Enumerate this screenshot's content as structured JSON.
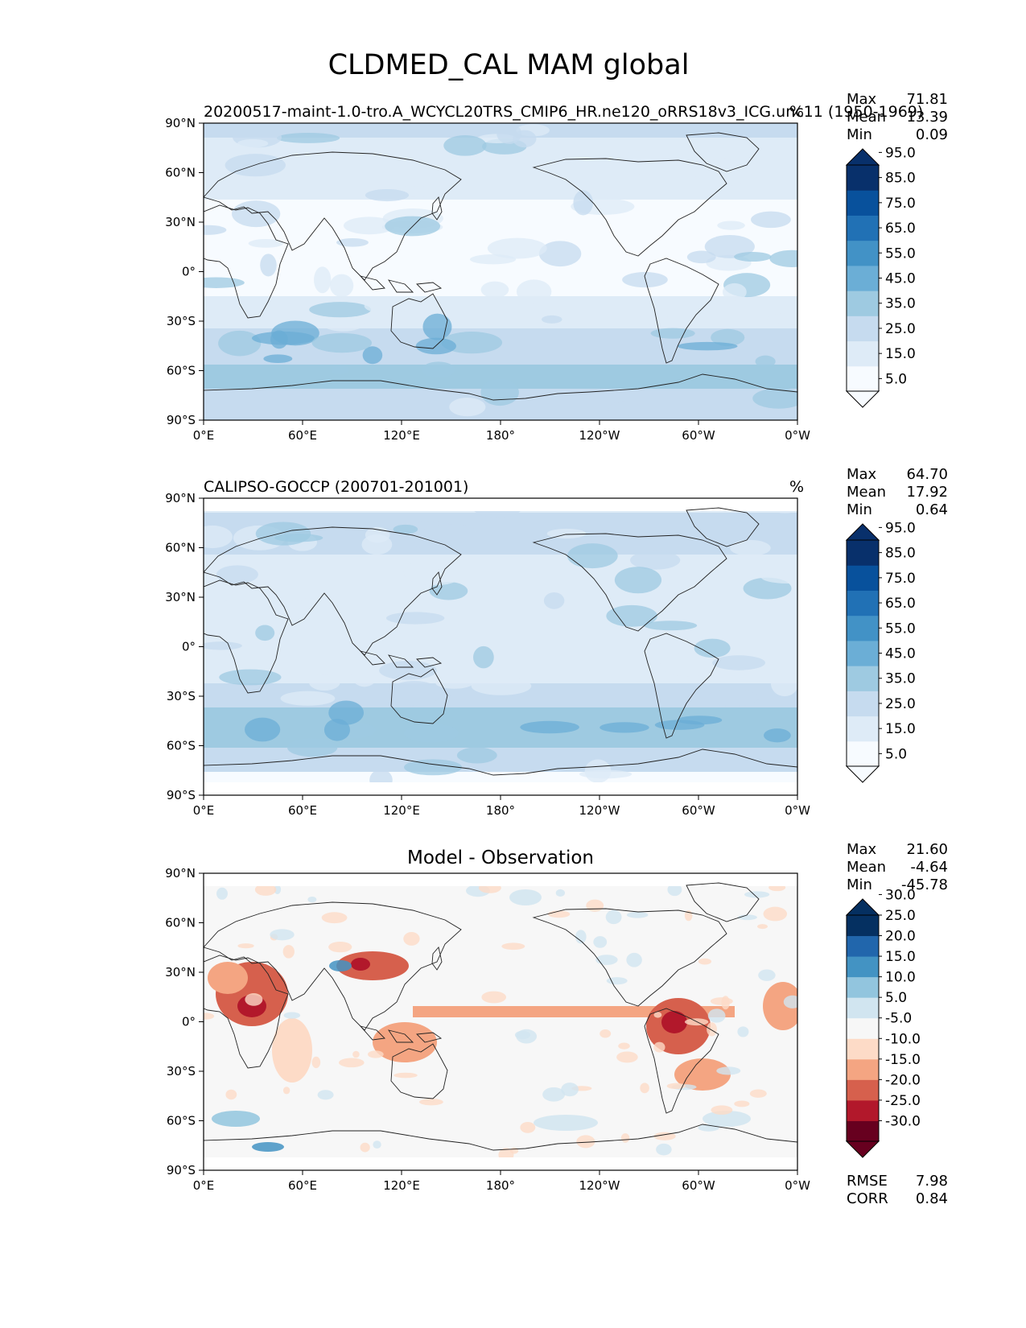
{
  "title": "CLDMED_CAL MAM global",
  "colors": {
    "seq": [
      "#f7fbff",
      "#deebf7",
      "#c6dbef",
      "#9ecae1",
      "#6baed6",
      "#4292c6",
      "#2171b5",
      "#08519c",
      "#08306b"
    ],
    "div": [
      "#67001f",
      "#b2182b",
      "#d6604d",
      "#f4a582",
      "#fddbc7",
      "#f7f7f7",
      "#d1e5f0",
      "#92c5de",
      "#4393c3",
      "#2166ac",
      "#053061"
    ]
  },
  "panels": [
    {
      "id": "model",
      "left_title": "20200517-maint-1.0-tro.A_WCYCL20TRS_CMIP6_HR.ne120_oRRS18v3_ICG.unc11 (1950-1969)",
      "center_title": "",
      "units": "%",
      "stats": [
        {
          "label": "Max",
          "value": "71.81"
        },
        {
          "label": "Mean",
          "value": "13.39"
        },
        {
          "label": "Min",
          "value": "0.09"
        }
      ],
      "colorbar_labels": [
        "5.0",
        "15.0",
        "25.0",
        "35.0",
        "45.0",
        "55.0",
        "65.0",
        "75.0",
        "85.0",
        "95.0"
      ],
      "colorbar_kind": "seq",
      "metrics": []
    },
    {
      "id": "obs",
      "left_title": "CALIPSO-GOCCP (200701-201001)",
      "center_title": "",
      "units": "%",
      "stats": [
        {
          "label": "Max",
          "value": "64.70"
        },
        {
          "label": "Mean",
          "value": "17.92"
        },
        {
          "label": "Min",
          "value": "0.64"
        }
      ],
      "colorbar_labels": [
        "5.0",
        "15.0",
        "25.0",
        "35.0",
        "45.0",
        "55.0",
        "65.0",
        "75.0",
        "85.0",
        "95.0"
      ],
      "colorbar_kind": "seq",
      "metrics": []
    },
    {
      "id": "diff",
      "left_title": "",
      "center_title": "Model - Observation",
      "units": "",
      "stats": [
        {
          "label": "Max",
          "value": "21.60"
        },
        {
          "label": "Mean",
          "value": "-4.64"
        },
        {
          "label": "Min",
          "value": "-45.78"
        }
      ],
      "colorbar_labels": [
        "-30.0",
        "-25.0",
        "-20.0",
        "-15.0",
        "-10.0",
        "-5.0",
        "5.0",
        "10.0",
        "15.0",
        "20.0",
        "25.0",
        "30.0"
      ],
      "colorbar_kind": "div",
      "metrics": [
        {
          "label": "RMSE",
          "value": "7.98"
        },
        {
          "label": "CORR",
          "value": "0.84"
        }
      ]
    }
  ],
  "lat_ticks": [
    "90°N",
    "60°N",
    "30°N",
    "0°",
    "30°S",
    "60°S",
    "90°S"
  ],
  "lon_ticks": [
    "0°E",
    "60°E",
    "120°E",
    "180°",
    "120°W",
    "60°W",
    "0°W"
  ]
}
